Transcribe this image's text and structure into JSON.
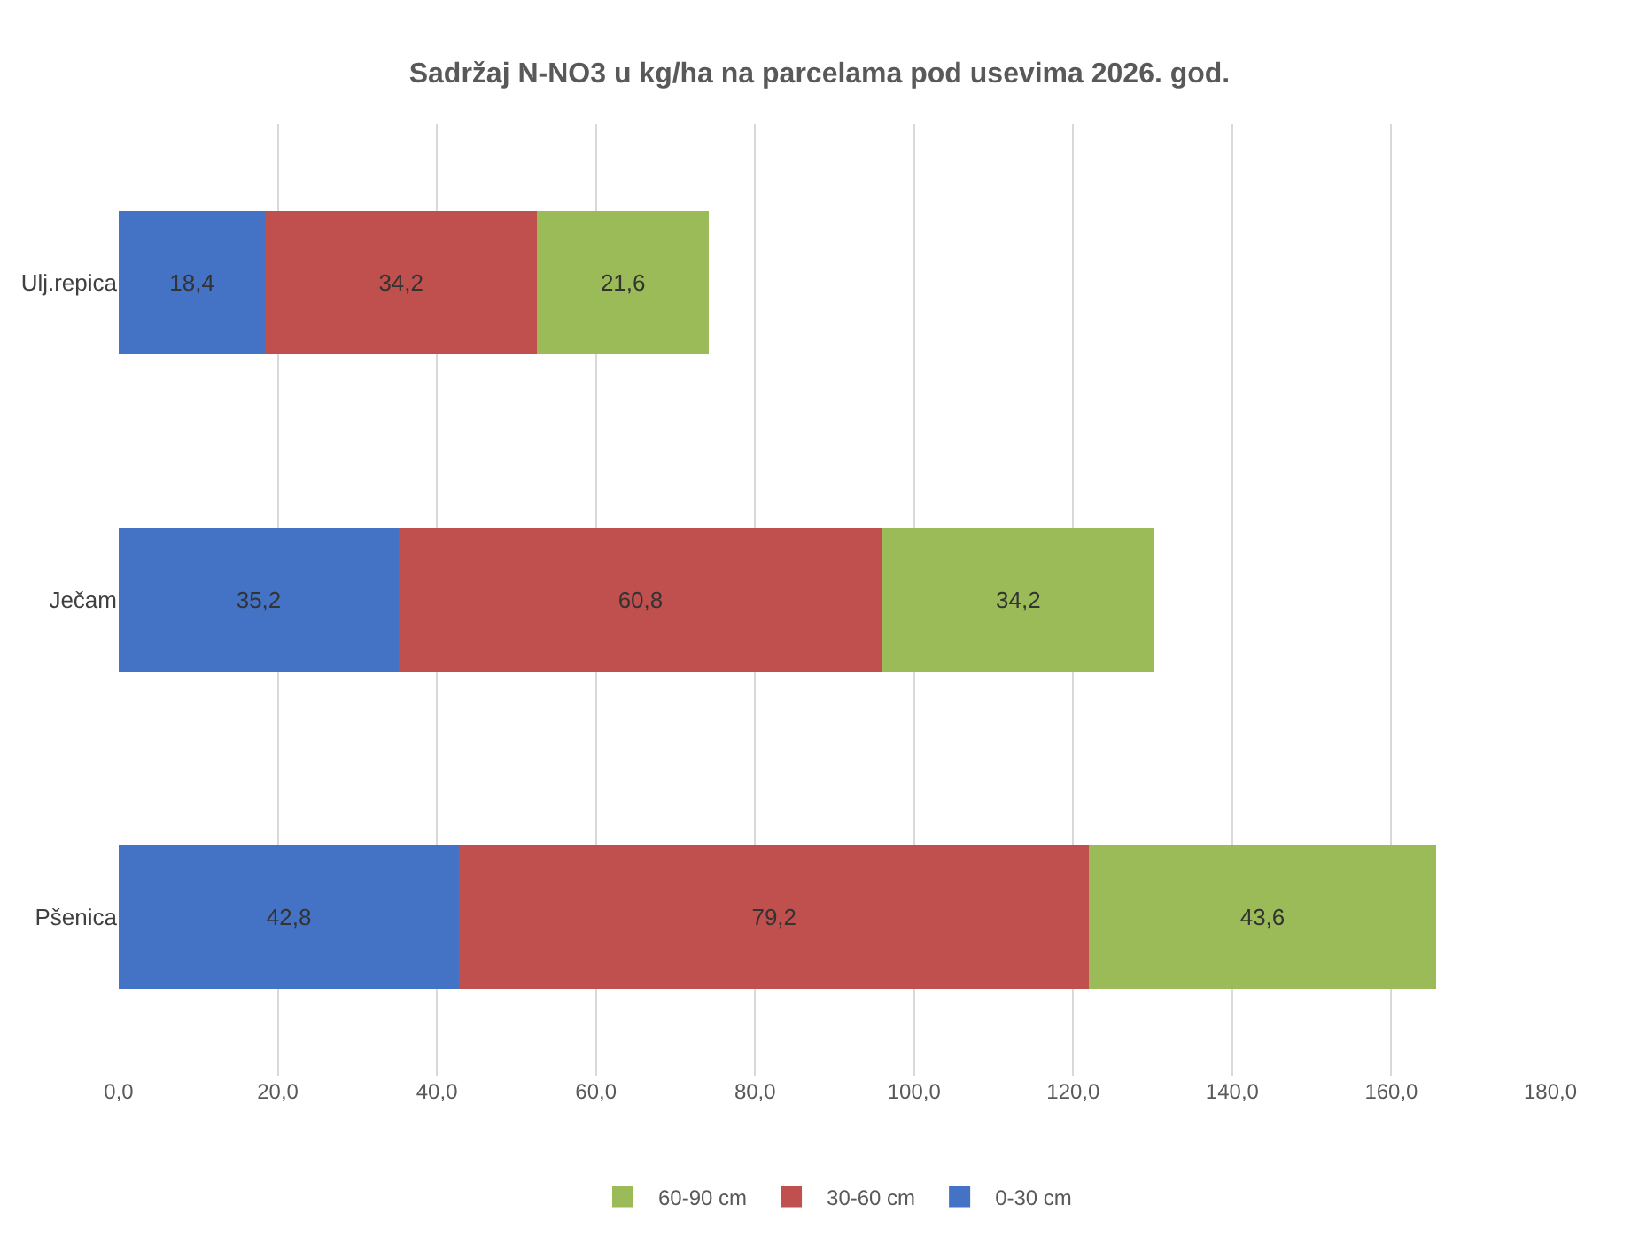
{
  "chart_data": {
    "type": "bar",
    "orientation": "horizontal",
    "stacked": true,
    "title": "Sadržaj N-NO3 u kg/ha na parcelama pod usevima 2026. god.",
    "categories": [
      "Ulj.repica",
      "Ječam",
      "Pšenica"
    ],
    "series": [
      {
        "name": "0-30 cm",
        "color": "#4472c4",
        "values": [
          18.4,
          35.2,
          42.8
        ],
        "value_labels": [
          "18,4",
          "35,2",
          "42,8"
        ]
      },
      {
        "name": "30-60 cm",
        "color": "#c0504d",
        "values": [
          34.2,
          60.8,
          79.2
        ],
        "value_labels": [
          "34,2",
          "60,8",
          "79,2"
        ]
      },
      {
        "name": "60-90 cm",
        "color": "#9bbb59",
        "values": [
          21.6,
          34.2,
          43.6
        ],
        "value_labels": [
          "21,6",
          "34,2",
          "43,6"
        ]
      }
    ],
    "xlim": [
      0,
      180
    ],
    "xticks": [
      {
        "value": 0,
        "label": "0,0"
      },
      {
        "value": 20,
        "label": "20,0"
      },
      {
        "value": 40,
        "label": "40,0"
      },
      {
        "value": 60,
        "label": "60,0"
      },
      {
        "value": 80,
        "label": "80,0"
      },
      {
        "value": 100,
        "label": "100,0"
      },
      {
        "value": 120,
        "label": "120,0"
      },
      {
        "value": 140,
        "label": "140,0"
      },
      {
        "value": 160,
        "label": "160,0"
      },
      {
        "value": 180,
        "label": "180,0"
      }
    ],
    "grid": "x",
    "legend": "bottom"
  }
}
